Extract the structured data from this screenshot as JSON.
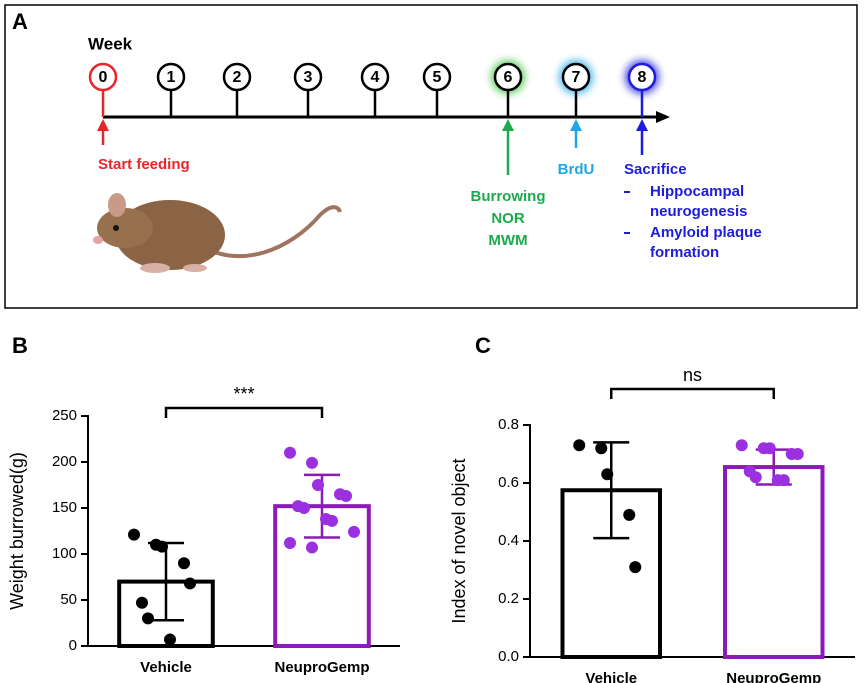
{
  "panel_a": {
    "label": "A",
    "axis_label": "Week",
    "weeks": [
      {
        "label": "0",
        "color": "#e8262a"
      },
      {
        "label": "1",
        "color": "#000000"
      },
      {
        "label": "2",
        "color": "#000000"
      },
      {
        "label": "3",
        "color": "#000000"
      },
      {
        "label": "4",
        "color": "#000000"
      },
      {
        "label": "5",
        "color": "#000000"
      },
      {
        "label": "6",
        "color": "#000000",
        "glow": "#3fc23f"
      },
      {
        "label": "7",
        "color": "#000000",
        "glow": "#1ea7e6"
      },
      {
        "label": "8",
        "color": "#1d1ddb",
        "glow": "#1d1ddb"
      }
    ],
    "events": [
      {
        "week": 0,
        "color": "#e8262a",
        "lines": [
          "Start feeding"
        ],
        "items": []
      },
      {
        "week": 6,
        "color": "#1bab4c",
        "lines": [
          "Burrowing",
          "NOR",
          "MWM"
        ],
        "items": []
      },
      {
        "week": 7,
        "color": "#1ea7e6",
        "lines": [
          "BrdU"
        ],
        "items": []
      },
      {
        "week": 8,
        "color": "#1d1ddb",
        "lines": [
          "Sacrifice"
        ],
        "items": [
          [
            "Hippocampal",
            "neurogenesis"
          ],
          [
            "Amyloid plaque",
            "formation"
          ]
        ]
      }
    ]
  },
  "chart_data": [
    {
      "type": "bar",
      "panel_label": "B",
      "y_label": "Weight burrowed(g)",
      "categories": [
        "Vehicle",
        "NeuproGemp"
      ],
      "values": [
        70,
        152
      ],
      "errors": [
        42,
        34
      ],
      "colors": [
        "#000000",
        "#8b1ab8"
      ],
      "point_colors": [
        "#000000",
        "#9b30e0"
      ],
      "points": [
        [
          121,
          110,
          108,
          90,
          68,
          47,
          30,
          7
        ],
        [
          210,
          199,
          175,
          165,
          163,
          152,
          150,
          138,
          136,
          124,
          112,
          107
        ]
      ],
      "ylim": [
        0,
        250
      ],
      "yticks": [
        0,
        50,
        100,
        150,
        200,
        250
      ],
      "annotation": "***"
    },
    {
      "type": "bar",
      "panel_label": "C",
      "y_label": "Index of novel object",
      "categories": [
        "Vehicle",
        "NeuproGemp"
      ],
      "values": [
        0.575,
        0.655
      ],
      "errors": [
        0.165,
        0.06
      ],
      "colors": [
        "#000000",
        "#8b1ab8"
      ],
      "point_colors": [
        "#000000",
        "#9b30e0"
      ],
      "points": [
        [
          0.73,
          0.72,
          0.63,
          0.49,
          0.31
        ],
        [
          0.73,
          0.72,
          0.72,
          0.7,
          0.7,
          0.64,
          0.62,
          0.61,
          0.61
        ]
      ],
      "ylim": [
        0,
        0.8
      ],
      "yticks": [
        {
          "value": 0,
          "label": "0.0"
        },
        0.2,
        0.4,
        0.6,
        0.8
      ],
      "annotation": "ns"
    }
  ]
}
